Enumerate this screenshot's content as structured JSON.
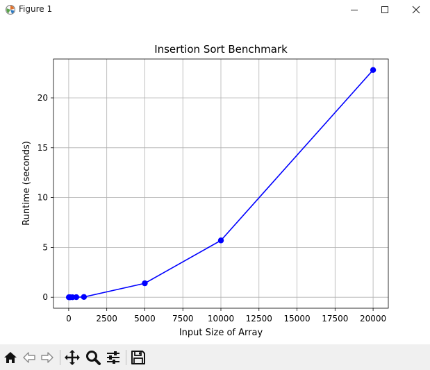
{
  "window": {
    "title": "Figure 1"
  },
  "toolbar": {
    "buttons": [
      "home-icon",
      "back-arrow-icon",
      "forward-arrow-icon",
      "pan-icon",
      "zoom-icon",
      "configure-subplots-icon",
      "save-icon"
    ]
  },
  "chart_data": {
    "type": "line",
    "title": "Insertion Sort Benchmark",
    "xlabel": "Input Size of Array",
    "ylabel": "Runtime (seconds)",
    "xlim": [
      -1000,
      21000
    ],
    "ylim": [
      -1.1,
      23.9
    ],
    "x_ticks": [
      0,
      2500,
      5000,
      7500,
      10000,
      12500,
      15000,
      17500,
      20000
    ],
    "y_ticks": [
      0,
      5,
      10,
      15,
      20
    ],
    "grid": true,
    "series": [
      {
        "color": "#0000ff",
        "marker": "circle",
        "x": [
          10,
          50,
          100,
          250,
          500,
          1000,
          5000,
          10000,
          20000
        ],
        "y": [
          0.0,
          0.0,
          0.0,
          0.0,
          0.01,
          0.03,
          1.4,
          5.7,
          22.8
        ]
      }
    ]
  }
}
